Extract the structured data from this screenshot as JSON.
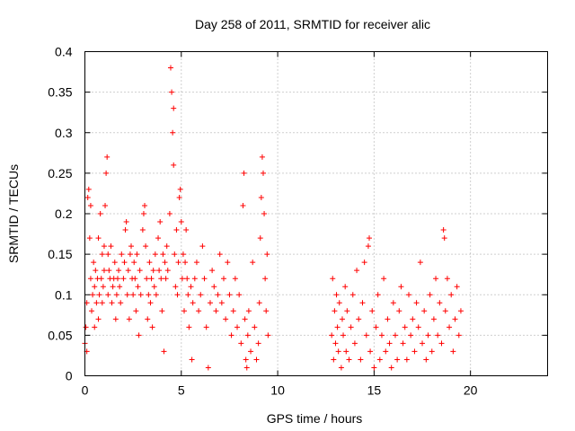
{
  "chart_data": {
    "type": "scatter",
    "title": "Day 258 of 2011, SRMTID for receiver alic",
    "xlabel": "GPS time / hours",
    "ylabel": "SRMTID / TECUs",
    "xlim": [
      0,
      24
    ],
    "ylim": [
      0,
      0.4
    ],
    "x_ticks": [
      0,
      5,
      10,
      15,
      20
    ],
    "y_ticks": [
      0,
      0.05,
      0.1,
      0.15,
      0.2,
      0.25,
      0.3,
      0.35,
      0.4
    ],
    "x_tick_labels": [
      "0",
      "5",
      "10",
      "15",
      "20"
    ],
    "y_tick_labels": [
      "0",
      "0.05",
      "0.1",
      "0.15",
      "0.2",
      "0.25",
      "0.3",
      "0.35",
      "0.4"
    ],
    "grid": true,
    "marker": "plus",
    "color": "#ff0000",
    "series": [
      {
        "points": [
          [
            0.0,
            0.04
          ],
          [
            0.05,
            0.06
          ],
          [
            0.1,
            0.03
          ],
          [
            0.1,
            0.09
          ],
          [
            0.15,
            0.22
          ],
          [
            0.2,
            0.23
          ],
          [
            0.25,
            0.17
          ],
          [
            0.3,
            0.21
          ],
          [
            0.3,
            0.12
          ],
          [
            0.35,
            0.08
          ],
          [
            0.4,
            0.1
          ],
          [
            0.45,
            0.14
          ],
          [
            0.5,
            0.06
          ],
          [
            0.5,
            0.11
          ],
          [
            0.55,
            0.13
          ],
          [
            0.6,
            0.09
          ],
          [
            0.65,
            0.12
          ],
          [
            0.7,
            0.17
          ],
          [
            0.7,
            0.07
          ],
          [
            0.75,
            0.1
          ],
          [
            0.8,
            0.2
          ],
          [
            0.85,
            0.12
          ],
          [
            0.9,
            0.15
          ],
          [
            0.9,
            0.09
          ],
          [
            0.95,
            0.11
          ],
          [
            1.0,
            0.16
          ],
          [
            1.0,
            0.13
          ],
          [
            1.05,
            0.21
          ],
          [
            1.1,
            0.25
          ],
          [
            1.15,
            0.27
          ],
          [
            1.2,
            0.15
          ],
          [
            1.2,
            0.1
          ],
          [
            1.25,
            0.13
          ],
          [
            1.3,
            0.12
          ],
          [
            1.35,
            0.16
          ],
          [
            1.4,
            0.09
          ],
          [
            1.45,
            0.11
          ],
          [
            1.5,
            0.12
          ],
          [
            1.55,
            0.14
          ],
          [
            1.6,
            0.07
          ],
          [
            1.65,
            0.1
          ],
          [
            1.7,
            0.12
          ],
          [
            1.75,
            0.13
          ],
          [
            1.8,
            0.11
          ],
          [
            1.85,
            0.09
          ],
          [
            1.9,
            0.15
          ],
          [
            2.0,
            0.12
          ],
          [
            2.05,
            0.14
          ],
          [
            2.1,
            0.18
          ],
          [
            2.15,
            0.19
          ],
          [
            2.2,
            0.1
          ],
          [
            2.25,
            0.13
          ],
          [
            2.3,
            0.07
          ],
          [
            2.35,
            0.15
          ],
          [
            2.4,
            0.16
          ],
          [
            2.45,
            0.12
          ],
          [
            2.5,
            0.1
          ],
          [
            2.55,
            0.14
          ],
          [
            2.6,
            0.12
          ],
          [
            2.65,
            0.08
          ],
          [
            2.7,
            0.15
          ],
          [
            2.75,
            0.11
          ],
          [
            2.8,
            0.05
          ],
          [
            2.85,
            0.13
          ],
          [
            2.9,
            0.1
          ],
          [
            3.0,
            0.18
          ],
          [
            3.05,
            0.2
          ],
          [
            3.1,
            0.21
          ],
          [
            3.15,
            0.16
          ],
          [
            3.2,
            0.12
          ],
          [
            3.25,
            0.07
          ],
          [
            3.3,
            0.1
          ],
          [
            3.35,
            0.14
          ],
          [
            3.4,
            0.09
          ],
          [
            3.45,
            0.12
          ],
          [
            3.5,
            0.06
          ],
          [
            3.55,
            0.13
          ],
          [
            3.6,
            0.11
          ],
          [
            3.65,
            0.15
          ],
          [
            3.7,
            0.1
          ],
          [
            3.8,
            0.17
          ],
          [
            3.85,
            0.13
          ],
          [
            3.9,
            0.19
          ],
          [
            3.95,
            0.12
          ],
          [
            4.0,
            0.08
          ],
          [
            4.05,
            0.15
          ],
          [
            4.1,
            0.03
          ],
          [
            4.15,
            0.14
          ],
          [
            4.2,
            0.12
          ],
          [
            4.25,
            0.16
          ],
          [
            4.3,
            0.13
          ],
          [
            4.4,
            0.2
          ],
          [
            4.45,
            0.38
          ],
          [
            4.5,
            0.35
          ],
          [
            4.55,
            0.3
          ],
          [
            4.6,
            0.26
          ],
          [
            4.6,
            0.33
          ],
          [
            4.65,
            0.15
          ],
          [
            4.7,
            0.11
          ],
          [
            4.75,
            0.18
          ],
          [
            4.8,
            0.1
          ],
          [
            4.85,
            0.14
          ],
          [
            4.9,
            0.22
          ],
          [
            4.95,
            0.23
          ],
          [
            5.0,
            0.19
          ],
          [
            5.05,
            0.12
          ],
          [
            5.1,
            0.15
          ],
          [
            5.15,
            0.08
          ],
          [
            5.2,
            0.14
          ],
          [
            5.25,
            0.18
          ],
          [
            5.3,
            0.12
          ],
          [
            5.35,
            0.1
          ],
          [
            5.4,
            0.06
          ],
          [
            5.5,
            0.11
          ],
          [
            5.55,
            0.02
          ],
          [
            5.6,
            0.09
          ],
          [
            5.7,
            0.12
          ],
          [
            5.8,
            0.14
          ],
          [
            5.9,
            0.08
          ],
          [
            6.0,
            0.1
          ],
          [
            6.1,
            0.16
          ],
          [
            6.2,
            0.12
          ],
          [
            6.3,
            0.06
          ],
          [
            6.4,
            0.01
          ],
          [
            6.5,
            0.09
          ],
          [
            6.6,
            0.13
          ],
          [
            6.7,
            0.11
          ],
          [
            6.8,
            0.08
          ],
          [
            6.9,
            0.1
          ],
          [
            7.0,
            0.15
          ],
          [
            7.1,
            0.09
          ],
          [
            7.2,
            0.12
          ],
          [
            7.3,
            0.07
          ],
          [
            7.4,
            0.14
          ],
          [
            7.5,
            0.1
          ],
          [
            7.6,
            0.05
          ],
          [
            7.7,
            0.08
          ],
          [
            7.8,
            0.12
          ],
          [
            7.9,
            0.06
          ],
          [
            8.0,
            0.1
          ],
          [
            8.1,
            0.04
          ],
          [
            8.2,
            0.21
          ],
          [
            8.25,
            0.25
          ],
          [
            8.3,
            0.07
          ],
          [
            8.35,
            0.02
          ],
          [
            8.4,
            0.01
          ],
          [
            8.45,
            0.05
          ],
          [
            8.5,
            0.08
          ],
          [
            8.6,
            0.03
          ],
          [
            8.7,
            0.14
          ],
          [
            8.8,
            0.06
          ],
          [
            8.9,
            0.02
          ],
          [
            9.0,
            0.04
          ],
          [
            9.05,
            0.09
          ],
          [
            9.1,
            0.17
          ],
          [
            9.15,
            0.22
          ],
          [
            9.2,
            0.27
          ],
          [
            9.25,
            0.25
          ],
          [
            9.3,
            0.2
          ],
          [
            9.35,
            0.12
          ],
          [
            9.4,
            0.08
          ],
          [
            9.45,
            0.15
          ],
          [
            9.5,
            0.05
          ]
        ]
      },
      {
        "points": [
          [
            12.8,
            0.05
          ],
          [
            12.85,
            0.12
          ],
          [
            12.9,
            0.02
          ],
          [
            12.95,
            0.08
          ],
          [
            13.0,
            0.04
          ],
          [
            13.05,
            0.1
          ],
          [
            13.1,
            0.06
          ],
          [
            13.15,
            0.03
          ],
          [
            13.2,
            0.09
          ],
          [
            13.3,
            0.01
          ],
          [
            13.35,
            0.07
          ],
          [
            13.4,
            0.05
          ],
          [
            13.5,
            0.11
          ],
          [
            13.55,
            0.03
          ],
          [
            13.6,
            0.08
          ],
          [
            13.7,
            0.02
          ],
          [
            13.8,
            0.06
          ],
          [
            13.9,
            0.1
          ],
          [
            14.0,
            0.04
          ],
          [
            14.1,
            0.13
          ],
          [
            14.2,
            0.07
          ],
          [
            14.3,
            0.02
          ],
          [
            14.4,
            0.09
          ],
          [
            14.5,
            0.14
          ],
          [
            14.6,
            0.05
          ],
          [
            14.7,
            0.16
          ],
          [
            14.75,
            0.17
          ],
          [
            14.8,
            0.03
          ],
          [
            14.9,
            0.08
          ],
          [
            15.0,
            0.01
          ],
          [
            15.1,
            0.06
          ],
          [
            15.2,
            0.1
          ],
          [
            15.3,
            0.02
          ],
          [
            15.4,
            0.05
          ],
          [
            15.5,
            0.12
          ],
          [
            15.6,
            0.03
          ],
          [
            15.7,
            0.07
          ],
          [
            15.8,
            0.04
          ],
          [
            15.9,
            0.01
          ],
          [
            16.0,
            0.09
          ],
          [
            16.1,
            0.05
          ],
          [
            16.2,
            0.02
          ],
          [
            16.3,
            0.08
          ],
          [
            16.4,
            0.11
          ],
          [
            16.5,
            0.04
          ],
          [
            16.6,
            0.06
          ],
          [
            16.7,
            0.02
          ],
          [
            16.8,
            0.1
          ],
          [
            16.9,
            0.05
          ],
          [
            17.0,
            0.07
          ],
          [
            17.1,
            0.03
          ],
          [
            17.2,
            0.09
          ],
          [
            17.3,
            0.06
          ],
          [
            17.4,
            0.14
          ],
          [
            17.5,
            0.04
          ],
          [
            17.6,
            0.08
          ],
          [
            17.7,
            0.02
          ],
          [
            17.8,
            0.05
          ],
          [
            17.9,
            0.1
          ],
          [
            18.0,
            0.03
          ],
          [
            18.1,
            0.07
          ],
          [
            18.2,
            0.12
          ],
          [
            18.3,
            0.05
          ],
          [
            18.4,
            0.09
          ],
          [
            18.5,
            0.04
          ],
          [
            18.6,
            0.18
          ],
          [
            18.65,
            0.17
          ],
          [
            18.7,
            0.08
          ],
          [
            18.8,
            0.12
          ],
          [
            18.9,
            0.06
          ],
          [
            19.0,
            0.1
          ],
          [
            19.1,
            0.03
          ],
          [
            19.2,
            0.07
          ],
          [
            19.3,
            0.11
          ],
          [
            19.4,
            0.05
          ],
          [
            19.5,
            0.08
          ]
        ]
      }
    ]
  }
}
